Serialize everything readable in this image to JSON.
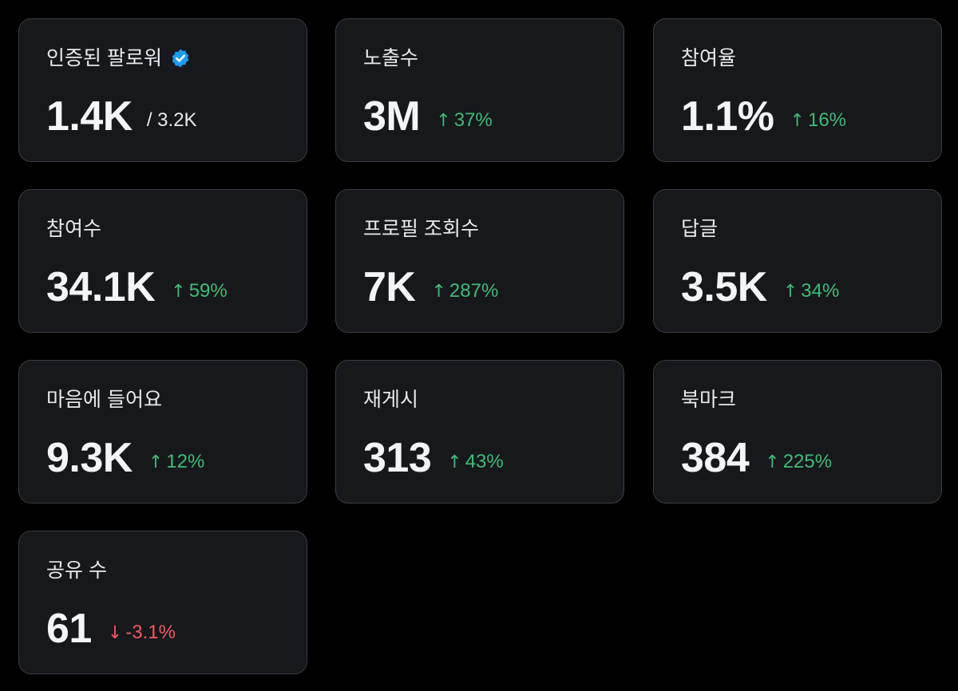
{
  "colors": {
    "background": "#000000",
    "card": "#16181c",
    "border": "#3a3d42",
    "up": "#3fbc75",
    "down": "#f35a5f",
    "verified": "#1d9bf0"
  },
  "cards": [
    {
      "label": "인증된 팔로워",
      "value": "1.4K",
      "sub": "/ 3.2K",
      "icon": "verified-badge-icon"
    },
    {
      "label": "노출수",
      "value": "3M",
      "change": "37%",
      "direction": "up"
    },
    {
      "label": "참여율",
      "value": "1.1%",
      "change": "16%",
      "direction": "up"
    },
    {
      "label": "참여수",
      "value": "34.1K",
      "change": "59%",
      "direction": "up"
    },
    {
      "label": "프로필 조회수",
      "value": "7K",
      "change": "287%",
      "direction": "up"
    },
    {
      "label": "답글",
      "value": "3.5K",
      "change": "34%",
      "direction": "up"
    },
    {
      "label": "마음에 들어요",
      "value": "9.3K",
      "change": "12%",
      "direction": "up"
    },
    {
      "label": "재게시",
      "value": "313",
      "change": "43%",
      "direction": "up"
    },
    {
      "label": "북마크",
      "value": "384",
      "change": "225%",
      "direction": "up"
    },
    {
      "label": "공유 수",
      "value": "61",
      "change": "-3.1%",
      "direction": "down"
    }
  ]
}
